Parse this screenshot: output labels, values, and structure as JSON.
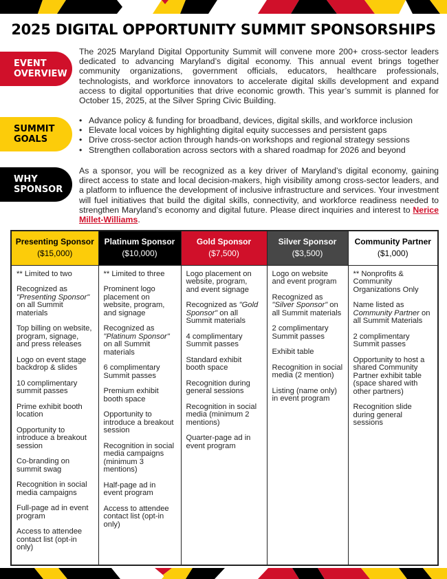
{
  "colors": {
    "red": "#d0102a",
    "yellow": "#fccc0a",
    "black": "#000000",
    "gray": "#474747"
  },
  "title": "2025 DIGITAL OPPORTUNITY SUMMIT SPONSORSHIPS",
  "overview": {
    "label": "EVENT OVERVIEW",
    "text": "The 2025 Maryland Digital Opportunity Summit will convene more 200+ cross-sector leaders dedicated to advancing Maryland’s digital economy. This annual event brings together community organizations, government officials, educators, healthcare professionals, technologists, and workforce innovators to accelerate digital skills development and expand access to digital opportunities that drive economic growth. This year’s summit is planned for October 15, 2025, at the Silver Spring Civic Building."
  },
  "goals": {
    "label": "SUMMIT GOALS",
    "items": [
      "Advance policy & funding for broadband, devices, digital skills, and workforce inclusion",
      "Elevate local voices by highlighting digital equity successes and persistent gaps",
      "Drive cross-sector action through hands-on workshops and regional strategy sessions",
      "Strengthen collaboration across sectors with a shared roadmap for 2026 and beyond"
    ]
  },
  "why": {
    "label": "WHY SPONSOR",
    "text": "As a sponsor, you will be recognized as a key driver of Maryland’s digital economy, gaining direct access to state and local decision-makers, high visibility among cross-sector leaders, and a platform to influence the development of inclusive infrastructure and services. Your investment will fuel initiatives that build the digital skills, connectivity, and workforce readiness needed to strengthen Maryland’s economy and digital future. Please direct inquiries and interest to",
    "link": "Nerice Millet-Williams",
    "end": "."
  },
  "tiers": [
    {
      "name": "Presenting Sponsor",
      "price": "($15,000)",
      "bg": "#fccc0a",
      "fg": "#000",
      "items": [
        [
          [
            "** Limited to two",
            0
          ]
        ],
        [
          [
            "Recognized as ",
            0
          ],
          [
            "\"Presenting Sponsor\"",
            1
          ],
          [
            " on all Summit materials",
            0
          ]
        ],
        [
          [
            "Top billing on website, program, signage, and press releases",
            0
          ]
        ],
        [
          [
            "Logo on event stage backdrop & slides",
            0
          ]
        ],
        [
          [
            "10 complimentary summit passes",
            0
          ]
        ],
        [
          [
            "Prime exhibit booth location",
            0
          ]
        ],
        [
          [
            "Opportunity to introduce a breakout session",
            0
          ]
        ],
        [
          [
            "Co-branding on summit swag",
            0
          ]
        ],
        [
          [
            "Recognition in social media campaigns",
            0
          ]
        ],
        [
          [
            "Full-page ad in event program",
            0
          ]
        ],
        [
          [
            "Access to attendee contact list (opt-in only)",
            0
          ]
        ]
      ]
    },
    {
      "name": "Platinum Sponsor",
      "price": "($10,000)",
      "bg": "#000000",
      "fg": "#fff",
      "items": [
        [
          [
            "** Limited to three",
            0
          ]
        ],
        [
          [
            "Prominent logo placement on website, program, and signage",
            0
          ]
        ],
        [
          [
            "Recognized as ",
            0
          ],
          [
            "\"Platinum Sponsor\"",
            1
          ],
          [
            " on all Summit materials",
            0
          ]
        ],
        [
          [
            "6 complimentary Summit passes",
            0
          ]
        ],
        [
          [
            "Premium exhibit booth space",
            0
          ]
        ],
        [
          [
            "Opportunity to introduce a breakout session",
            0
          ]
        ],
        [
          [
            "Recognition in social media campaigns (minimum 3 mentions)",
            0
          ]
        ],
        [
          [
            "Half-page ad in event program",
            0
          ]
        ],
        [
          [
            "Access to attendee contact list (opt-in only)",
            0
          ]
        ]
      ]
    },
    {
      "name": "Gold  Sponsor",
      "price": "($7,500)",
      "bg": "#d0102a",
      "fg": "#fff",
      "items": [
        [
          [
            "Logo placement on website, program, and event signage",
            0
          ]
        ],
        [
          [
            "Recognized as ",
            0
          ],
          [
            "\"Gold Sponsor\"",
            1
          ],
          [
            " on all Summit materials",
            0
          ]
        ],
        [
          [
            "4 complimentary Summit passes",
            0
          ]
        ],
        [
          [
            "Standard exhibit booth space",
            0
          ]
        ],
        [
          [
            "Recognition during general sessions",
            0
          ]
        ],
        [
          [
            "Recognition in social media (minimum 2 mentions)",
            0
          ]
        ],
        [
          [
            "Quarter-page ad in event program",
            0
          ]
        ]
      ]
    },
    {
      "name": "Silver Sponsor",
      "price": "($3,500)",
      "bg": "#474747",
      "fg": "#fff",
      "items": [
        [
          [
            "Logo on website and event program",
            0
          ]
        ],
        [
          [
            "Recognized as ",
            0
          ],
          [
            "\"Silver Sponsor\"",
            1
          ],
          [
            " on all Summit materials",
            0
          ]
        ],
        [
          [
            "2 complimentary Summit passes",
            0
          ]
        ],
        [
          [
            "Exhibit table",
            0
          ]
        ],
        [
          [
            "Recognition in social media (2 mention)",
            0
          ]
        ],
        [
          [
            "Listing (name only) in event program",
            0
          ]
        ]
      ]
    },
    {
      "name": "Community Partner",
      "price": "($1,000)",
      "bg": "#ffffff",
      "fg": "#000",
      "items": [
        [
          [
            "** Nonprofits & Community Organizations Only",
            0
          ]
        ],
        [
          [
            "Name listed as ",
            0
          ],
          [
            "Community Partner",
            1
          ],
          [
            " on all Summit Materials",
            0
          ]
        ],
        [
          [
            "2 complimentary Summit passes",
            0
          ]
        ],
        [
          [
            "Opportunity to host a shared Community Partner exhibit table (space shared with other partners)",
            0
          ]
        ],
        [
          [
            "Recognition slide during general sessions",
            0
          ]
        ]
      ]
    }
  ]
}
